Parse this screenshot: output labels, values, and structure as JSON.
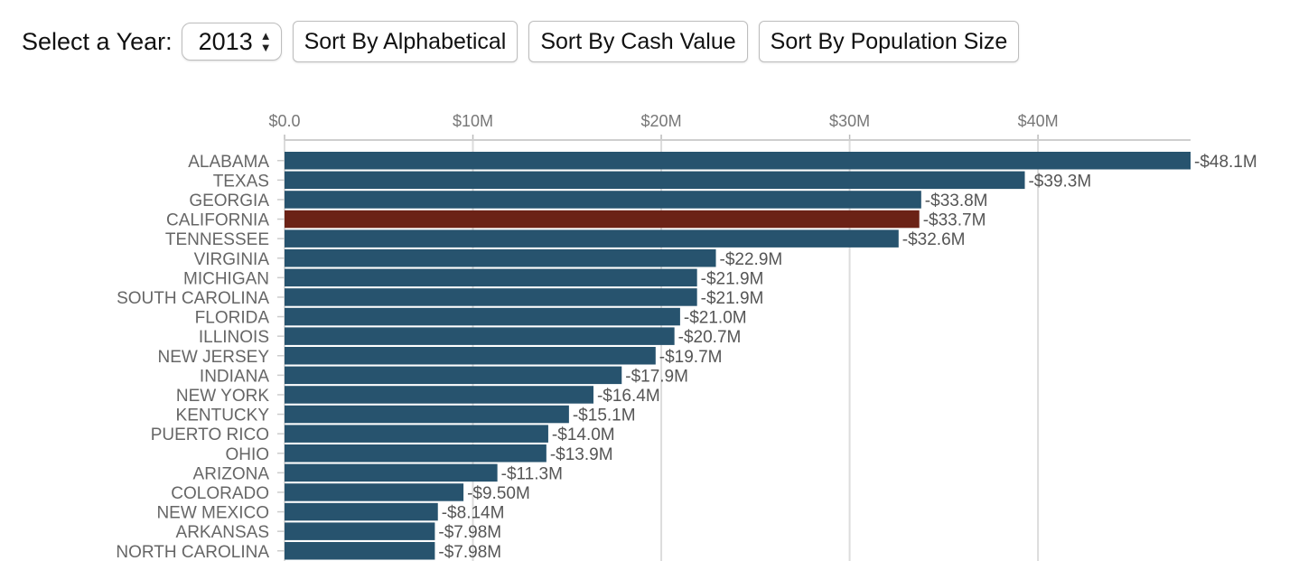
{
  "controls": {
    "year_label": "Select a Year:",
    "year_value": "2013",
    "sort_alpha_label": "Sort By Alphabetical",
    "sort_cash_label": "Sort By Cash Value",
    "sort_population_label": "Sort By Population Size"
  },
  "colors": {
    "bar": "#27536e",
    "highlight": "#6b2216",
    "grid": "#dcdcdc"
  },
  "chart_data": {
    "type": "bar",
    "orientation": "horizontal",
    "title": "",
    "xlabel": "",
    "ylabel": "",
    "xlim": [
      0,
      48.1
    ],
    "x_ticks": [
      {
        "value": 0,
        "label": "$0.0"
      },
      {
        "value": 10,
        "label": "$10M"
      },
      {
        "value": 20,
        "label": "$20M"
      },
      {
        "value": 30,
        "label": "$30M"
      },
      {
        "value": 40,
        "label": "$40M"
      }
    ],
    "grid": true,
    "axis_position": "top",
    "highlight_category": "CALIFORNIA",
    "categories": [
      "ALABAMA",
      "TEXAS",
      "GEORGIA",
      "CALIFORNIA",
      "TENNESSEE",
      "VIRGINIA",
      "MICHIGAN",
      "SOUTH CAROLINA",
      "FLORIDA",
      "ILLINOIS",
      "NEW JERSEY",
      "INDIANA",
      "NEW YORK",
      "KENTUCKY",
      "PUERTO RICO",
      "OHIO",
      "ARIZONA",
      "COLORADO",
      "NEW MEXICO",
      "ARKANSAS",
      "NORTH CAROLINA"
    ],
    "values": [
      48.1,
      39.3,
      33.8,
      33.7,
      32.6,
      22.9,
      21.9,
      21.9,
      21.0,
      20.7,
      19.7,
      17.9,
      16.4,
      15.1,
      14.0,
      13.9,
      11.3,
      9.5,
      8.14,
      7.98,
      7.98
    ],
    "value_labels": [
      "-$48.1M",
      "-$39.3M",
      "-$33.8M",
      "-$33.7M",
      "-$32.6M",
      "-$22.9M",
      "-$21.9M",
      "-$21.9M",
      "-$21.0M",
      "-$20.7M",
      "-$19.7M",
      "-$17.9M",
      "-$16.4M",
      "-$15.1M",
      "-$14.0M",
      "-$13.9M",
      "-$11.3M",
      "-$9.50M",
      "-$8.14M",
      "-$7.98M",
      "-$7.98M"
    ]
  }
}
